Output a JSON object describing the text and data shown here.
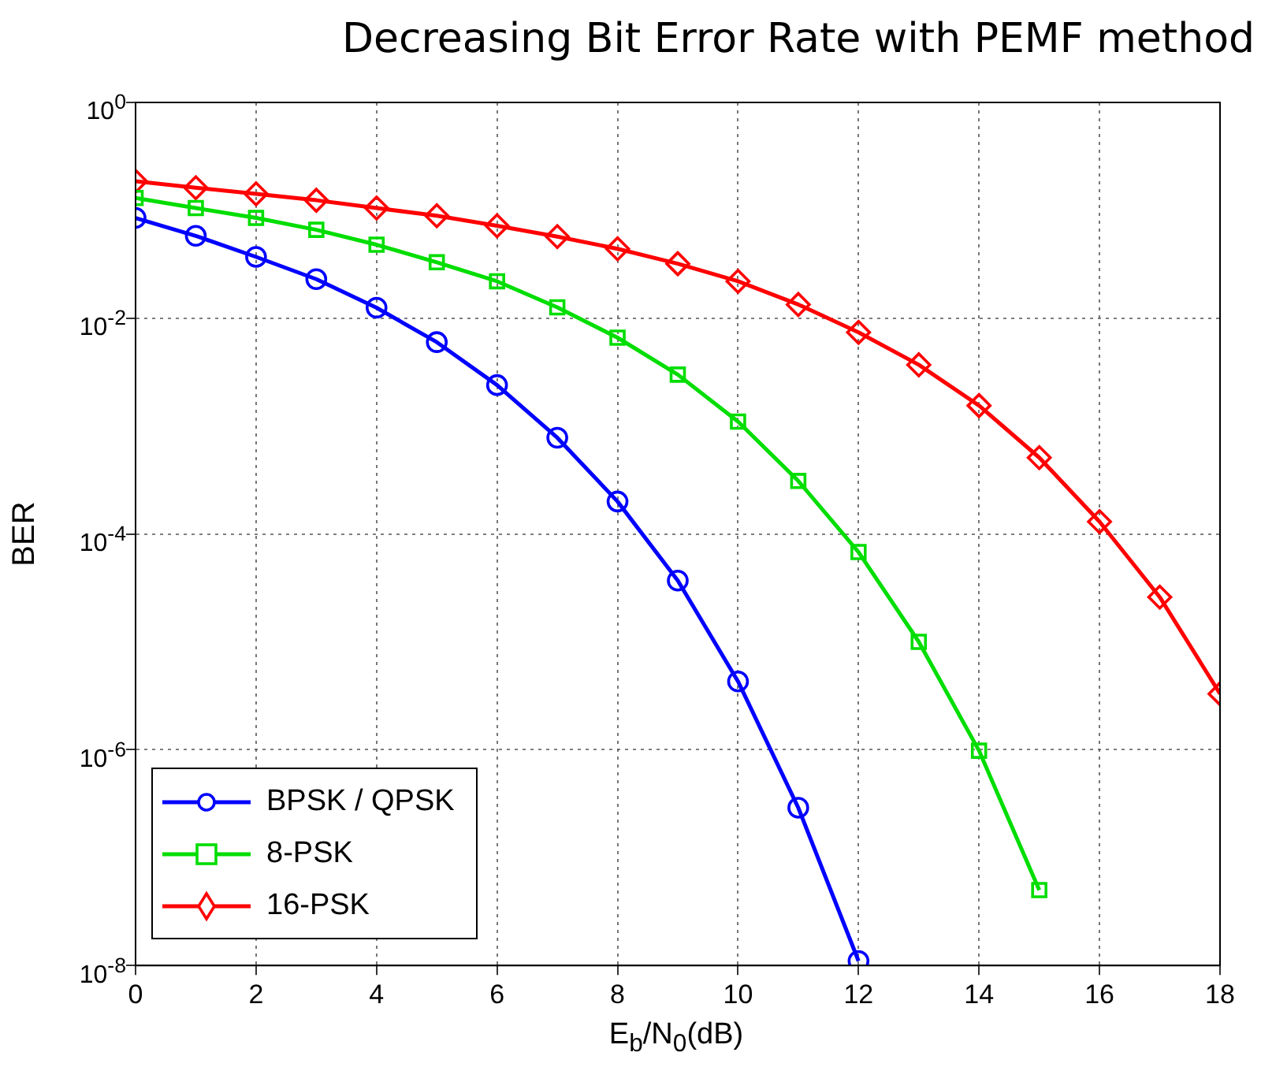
{
  "chart_data": {
    "type": "line",
    "title": "Decreasing Bit Error Rate with PEMF method",
    "xlabel": "E$_{b}$/N$_{0}$(dB)",
    "ylabel": "BER",
    "x": [
      0,
      1,
      2,
      3,
      4,
      5,
      6,
      7,
      8,
      9,
      10,
      11,
      12,
      13,
      14,
      15,
      16,
      17,
      18
    ],
    "xlim": [
      0,
      18
    ],
    "xticks": [
      0,
      2,
      4,
      6,
      8,
      10,
      12,
      14,
      16,
      18
    ],
    "ylim": [
      1e-08,
      1
    ],
    "yticks": [
      {
        "value": 1e-08,
        "label": "10$^{-8}$"
      },
      {
        "value": 1e-06,
        "label": "10$^{-6}$"
      },
      {
        "value": 0.0001,
        "label": "10$^{-4}$"
      },
      {
        "value": 0.01,
        "label": "10$^{-2}$"
      },
      {
        "value": 1,
        "label": "10$^{0}$"
      }
    ],
    "log": "y",
    "grid": true,
    "legend": "bottom left",
    "line_style": "solid",
    "series": [
      {
        "name": "BPSK / QPSK",
        "color": "#0000ff",
        "marker": "circle",
        "values": [
          0.085,
          0.058,
          0.037,
          0.023,
          0.0125,
          0.006,
          0.0024,
          0.00078,
          0.0002,
          3.7e-05,
          4.3e-06,
          2.9e-07,
          1.1e-08,
          null,
          null,
          null,
          null,
          null,
          null
        ]
      },
      {
        "name": "8-PSK",
        "color": "#00dd00",
        "marker": "square",
        "values": [
          0.13,
          0.105,
          0.085,
          0.066,
          0.048,
          0.033,
          0.022,
          0.0126,
          0.0066,
          0.003,
          0.0011,
          0.00031,
          6.8e-05,
          1e-05,
          9.8e-07,
          5e-08,
          null,
          null,
          null
        ]
      },
      {
        "name": "16-PSK",
        "color": "#ff0000",
        "marker": "diamond",
        "values": [
          0.186,
          0.162,
          0.142,
          0.124,
          0.105,
          0.089,
          0.072,
          0.057,
          0.044,
          0.032,
          0.022,
          0.0134,
          0.0074,
          0.0037,
          0.00155,
          0.00051,
          0.00013,
          2.6e-05,
          3.3e-06
        ]
      }
    ]
  }
}
